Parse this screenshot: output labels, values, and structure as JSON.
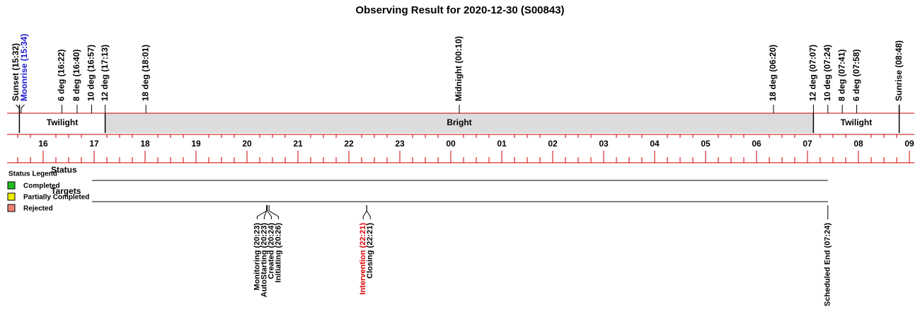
{
  "title": "Observing Result for 2020-12-30 (S00843)",
  "top_events": [
    {
      "label": "Sunset (15:32)",
      "color": "#000000"
    },
    {
      "label": "Moonrise (15:34)",
      "color": "#1a1acc"
    },
    {
      "label": "6 deg (16:22)",
      "color": "#000000"
    },
    {
      "label": "8 deg (16:40)",
      "color": "#000000"
    },
    {
      "label": "10 deg (16:57)",
      "color": "#000000"
    },
    {
      "label": "12 deg (17:13)",
      "color": "#000000"
    },
    {
      "label": "18 deg (18:01)",
      "color": "#000000"
    },
    {
      "label": "Midnight (00:10)",
      "color": "#000000"
    },
    {
      "label": "18 deg (06:20)",
      "color": "#000000"
    },
    {
      "label": "12 deg (07:07)",
      "color": "#000000"
    },
    {
      "label": "10 deg (07:24)",
      "color": "#000000"
    },
    {
      "label": "8 deg (07:41)",
      "color": "#000000"
    },
    {
      "label": "6 deg (07:58)",
      "color": "#000000"
    },
    {
      "label": "Sunrise (08:48)",
      "color": "#000000"
    }
  ],
  "bands": [
    {
      "label": "Twilight",
      "color": "#ffffff"
    },
    {
      "label": "Bright",
      "color": "#dcdcdc"
    },
    {
      "label": "Twilight",
      "color": "#ffffff"
    }
  ],
  "hours": [
    "16",
    "17",
    "18",
    "19",
    "20",
    "21",
    "22",
    "23",
    "00",
    "01",
    "02",
    "03",
    "04",
    "05",
    "06",
    "07",
    "08",
    "09"
  ],
  "rows": [
    "Status",
    "Targets"
  ],
  "legend": {
    "title": "Status Legend",
    "items": [
      {
        "label": "Completed",
        "color": "#22bb22"
      },
      {
        "label": "Partially Completed",
        "color": "#eeee00"
      },
      {
        "label": "Rejected",
        "color": "#f08070"
      }
    ]
  },
  "bottom_events": [
    {
      "label": "Monitoring (20:23)",
      "color": "#000000"
    },
    {
      "label": "AutoStarting (20:23)",
      "color": "#000000"
    },
    {
      "label": "Created (20:24)",
      "color": "#000000"
    },
    {
      "label": "Initiating (20:26)",
      "color": "#000000"
    },
    {
      "label": "Intervention (22:21)",
      "color": "#dd0000"
    },
    {
      "label": "Closing (22:21)",
      "color": "#000000"
    },
    {
      "label": "Scheduled End (07:24)",
      "color": "#000000"
    }
  ]
}
